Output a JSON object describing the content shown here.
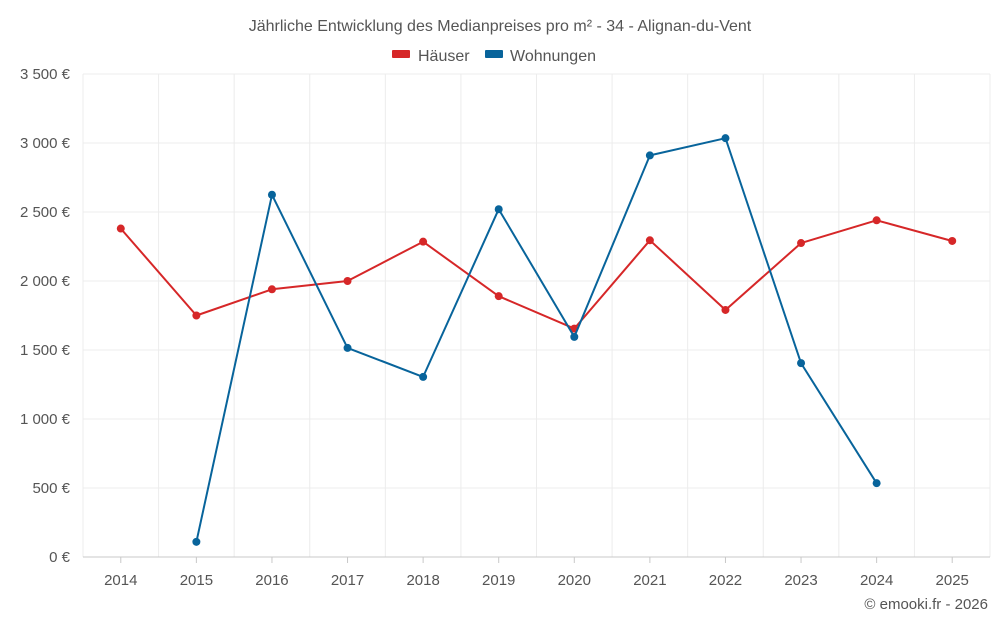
{
  "chart_data": {
    "type": "line",
    "title": "Jährliche Entwicklung des Medianpreises pro m² - 34 - Alignan-du-Vent",
    "categories": [
      "2014",
      "2015",
      "2016",
      "2017",
      "2018",
      "2019",
      "2020",
      "2021",
      "2022",
      "2023",
      "2024",
      "2025"
    ],
    "y_tick_labels": [
      "0 €",
      "500 €",
      "1 000 €",
      "1 500 €",
      "2 000 €",
      "2 500 €",
      "3 000 €",
      "3 500 €"
    ],
    "ylim": [
      0,
      3500
    ],
    "grid": true,
    "legend_position": "top-center",
    "series": [
      {
        "name": "Häuser",
        "color": "#d62728",
        "values": [
          2380,
          1750,
          1940,
          2000,
          2285,
          1890,
          1655,
          2295,
          1790,
          2275,
          2440,
          2290
        ]
      },
      {
        "name": "Wohnungen",
        "color": "#08649b",
        "values": [
          null,
          110,
          2625,
          1515,
          1305,
          2520,
          1595,
          2910,
          3035,
          1405,
          535,
          null
        ]
      }
    ],
    "credit": "© emooki.fr - 2026"
  }
}
